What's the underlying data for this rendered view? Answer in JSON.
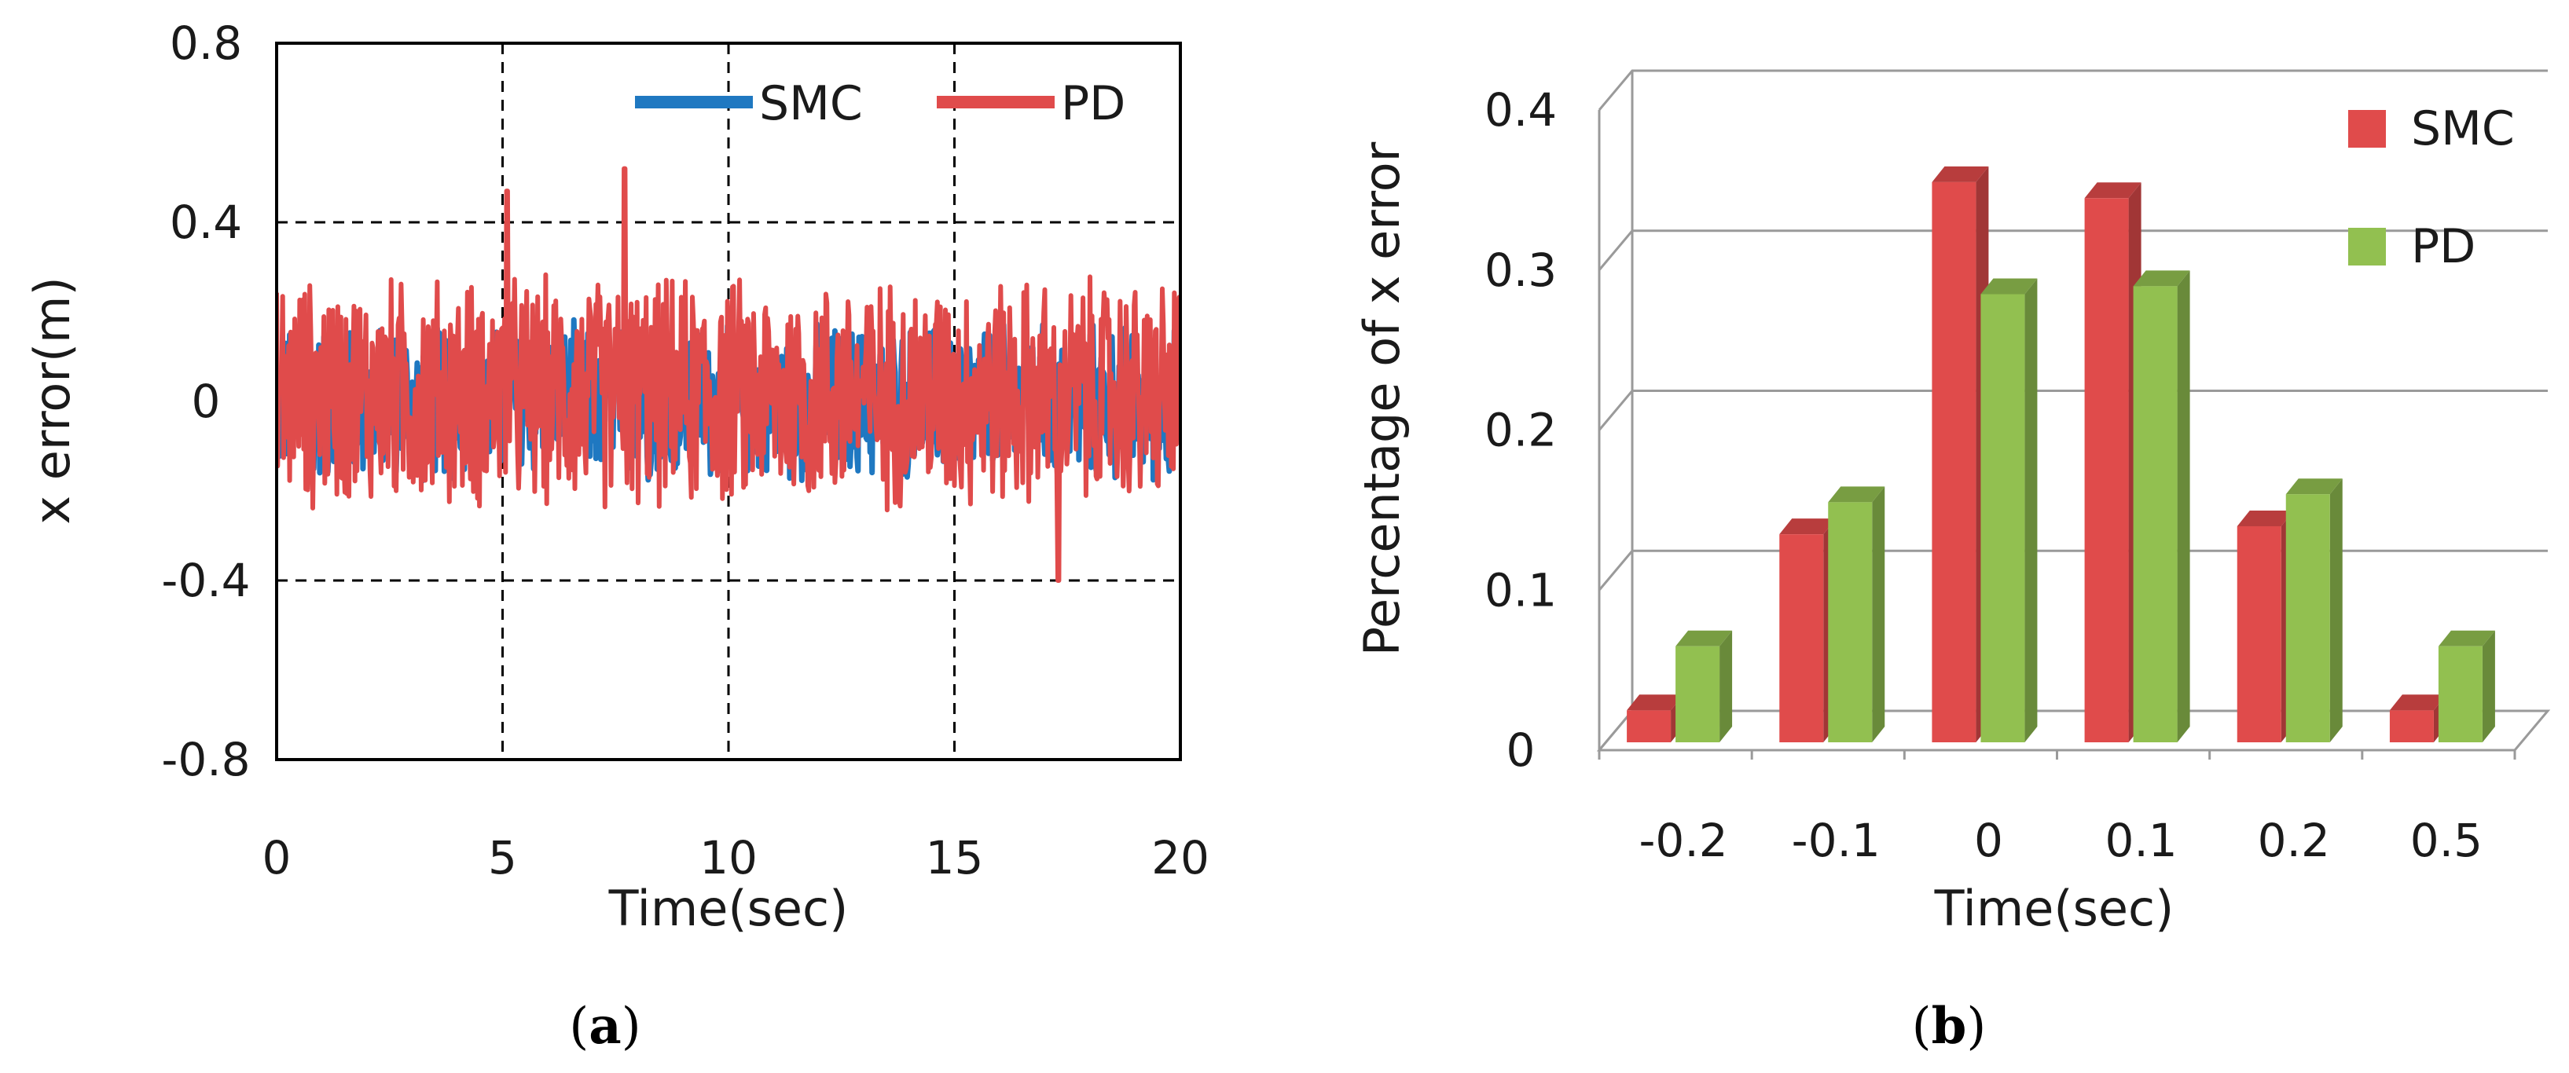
{
  "chart_data": [
    {
      "type": "line",
      "caption": "(a)",
      "xlabel": "Time(sec)",
      "ylabel": "x error(m)",
      "xlim": [
        0,
        20
      ],
      "ylim": [
        -0.8,
        0.8
      ],
      "xticks": [
        "0",
        "5",
        "10",
        "15",
        "20"
      ],
      "yticks": [
        "0.8",
        "0.4",
        "0",
        "-0.4",
        "-0.8"
      ],
      "grid": "dashed",
      "legend_position": "top-right",
      "series": [
        {
          "name": "SMC",
          "color": "#1f78c1",
          "envelope": {
            "approx_range": [
              -0.32,
              0.3
            ]
          }
        },
        {
          "name": "PD",
          "color": "#e04b4b",
          "envelope": {
            "approx_range": [
              -0.4,
              0.52
            ]
          },
          "notable_peaks": [
            {
              "x": 5.1,
              "y": 0.47
            },
            {
              "x": 7.7,
              "y": 0.53
            },
            {
              "x": 17.3,
              "y": -0.4
            }
          ]
        }
      ]
    },
    {
      "type": "bar",
      "style": "3d-clustered",
      "caption": "(b)",
      "xlabel": "Time(sec)",
      "ylabel": "Percentage of x error",
      "ylim": [
        0,
        0.4
      ],
      "yticks": [
        "0.4",
        "0.3",
        "0.2",
        "0.1",
        "0"
      ],
      "legend_position": "right",
      "categories": [
        "-0.2",
        "-0.1",
        "0",
        "0.1",
        "0.2",
        "0.5"
      ],
      "series": [
        {
          "name": "SMC",
          "color": "#e04b4b",
          "values": [
            0.02,
            0.13,
            0.35,
            0.34,
            0.135,
            0.02
          ]
        },
        {
          "name": "PD",
          "color": "#92c050",
          "values": [
            0.06,
            0.15,
            0.28,
            0.285,
            0.155,
            0.06
          ]
        }
      ]
    }
  ]
}
